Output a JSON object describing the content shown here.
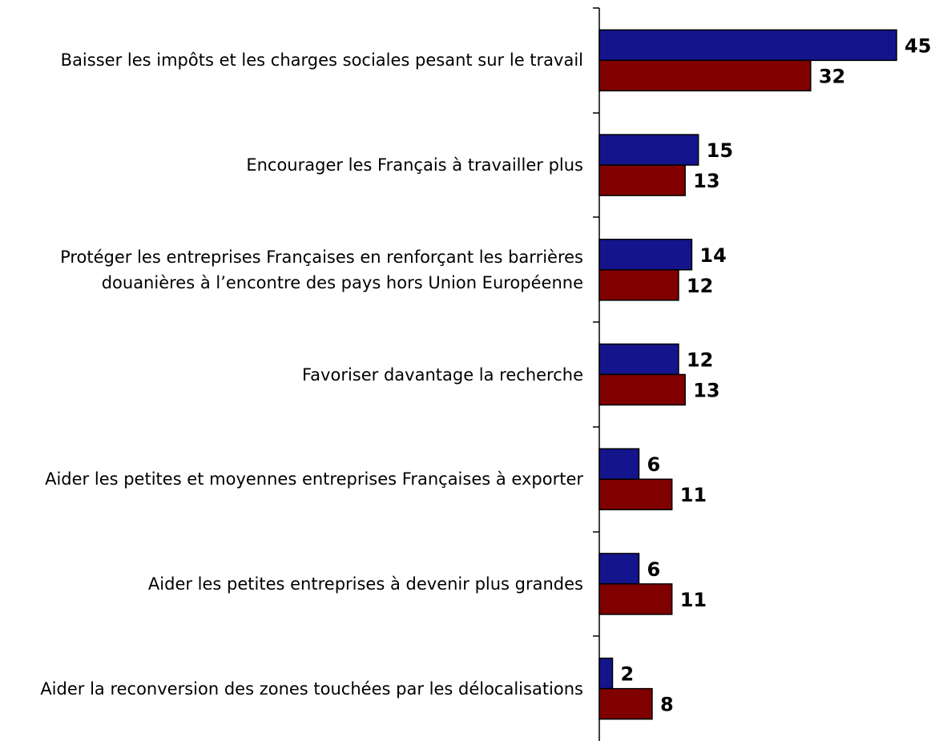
{
  "chart_data": {
    "type": "bar",
    "orientation": "horizontal",
    "categories": [
      "Baisser les impôts et les charges sociales pesant sur le travail",
      "Encourager les Français à travailler plus",
      "Protéger les entreprises Françaises en renforçant les barrières douanières à l’encontre des pays hors Union Européenne",
      "Favoriser davantage la recherche",
      "Aider les petites et moyennes entreprises Françaises à exporter",
      "Aider les petites entreprises à devenir plus grandes",
      "Aider la reconversion des zones touchées par les délocalisations"
    ],
    "series": [
      {
        "color": "#14148c",
        "values": [
          45,
          15,
          14,
          12,
          6,
          6,
          2
        ]
      },
      {
        "color": "#800000",
        "values": [
          32,
          13,
          12,
          13,
          11,
          11,
          8
        ]
      }
    ]
  }
}
